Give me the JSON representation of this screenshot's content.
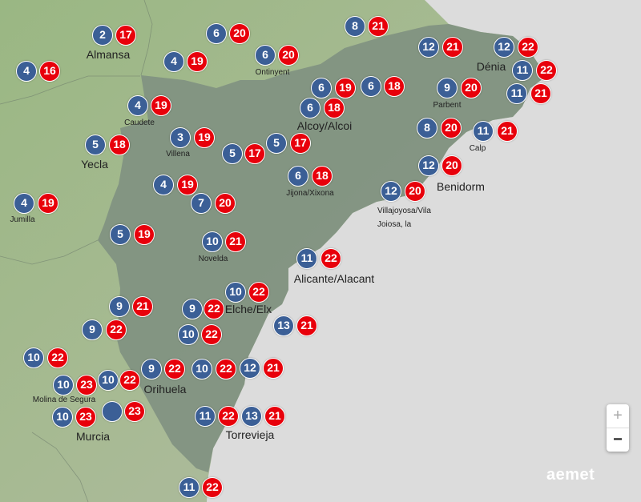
{
  "colors": {
    "min_temp": "#3b5f96",
    "max_temp": "#e8000b",
    "sea": "#dcdcdc",
    "land": "#9fb58a",
    "province": "#7f9181"
  },
  "stations": [
    {
      "min": "2",
      "max": "17",
      "label": "Almansa"
    },
    {
      "min": "6",
      "max": "20",
      "label": ""
    },
    {
      "min": "8",
      "max": "21",
      "label": ""
    },
    {
      "min": "4",
      "max": "16",
      "label": ""
    },
    {
      "min": "4",
      "max": "19",
      "label": ""
    },
    {
      "min": "6",
      "max": "20",
      "label": "Ontinyent"
    },
    {
      "min": "12",
      "max": "21",
      "label": ""
    },
    {
      "min": "12",
      "max": "22",
      "label": "Dénia"
    },
    {
      "min": "11",
      "max": "22",
      "label": ""
    },
    {
      "min": "11",
      "max": "21",
      "label": ""
    },
    {
      "min": "6",
      "max": "19",
      "label": ""
    },
    {
      "min": "6",
      "max": "18",
      "label": ""
    },
    {
      "min": "9",
      "max": "20",
      "label": "Parbent"
    },
    {
      "min": "6",
      "max": "18",
      "label": "Alcoy/Alcoi"
    },
    {
      "min": "4",
      "max": "19",
      "label": "Caudete"
    },
    {
      "min": "3",
      "max": "19",
      "label": "Villena"
    },
    {
      "min": "5",
      "max": "17",
      "label": ""
    },
    {
      "min": "5",
      "max": "17",
      "label": ""
    },
    {
      "min": "5",
      "max": "18",
      "label": "Yecla"
    },
    {
      "min": "8",
      "max": "20",
      "label": ""
    },
    {
      "min": "11",
      "max": "21",
      "label": "Calp"
    },
    {
      "min": "6",
      "max": "18",
      "label": "Jijona/Xixona"
    },
    {
      "min": "12",
      "max": "20",
      "label": "Benidorm"
    },
    {
      "min": "12",
      "max": "20",
      "label": "Villajoyosa/Vila Joiosa, la"
    },
    {
      "min": "4",
      "max": "19",
      "label": ""
    },
    {
      "min": "7",
      "max": "20",
      "label": ""
    },
    {
      "min": "4",
      "max": "19",
      "label": "Jumilla"
    },
    {
      "min": "5",
      "max": "19",
      "label": ""
    },
    {
      "min": "10",
      "max": "21",
      "label": "Novelda"
    },
    {
      "min": "11",
      "max": "22",
      "label": "Alicante/Alacant"
    },
    {
      "min": "10",
      "max": "22",
      "label": ""
    },
    {
      "min": "9",
      "max": "22",
      "label": "Elche/Elx"
    },
    {
      "min": "9",
      "max": "21",
      "label": ""
    },
    {
      "min": "9",
      "max": "22",
      "label": ""
    },
    {
      "min": "13",
      "max": "21",
      "label": ""
    },
    {
      "min": "10",
      "max": "22",
      "label": ""
    },
    {
      "min": "10",
      "max": "22",
      "label": ""
    },
    {
      "min": "9",
      "max": "22",
      "label": "Orihuela"
    },
    {
      "min": "10",
      "max": "22",
      "label": ""
    },
    {
      "min": "12",
      "max": "21",
      "label": ""
    },
    {
      "min": "10",
      "max": "23",
      "label": "Molina de Segura"
    },
    {
      "min": "10",
      "max": "22",
      "label": ""
    },
    {
      "min": "",
      "max": "23",
      "label": "Murcia"
    },
    {
      "min": "10",
      "max": "23",
      "label": ""
    },
    {
      "min": "11",
      "max": "22",
      "label": "Torrevieja"
    },
    {
      "min": "13",
      "max": "21",
      "label": ""
    },
    {
      "min": "11",
      "max": "22",
      "label": ""
    }
  ],
  "controls": {
    "zoom_in": "+",
    "zoom_out": "−"
  },
  "logo": "aemet"
}
